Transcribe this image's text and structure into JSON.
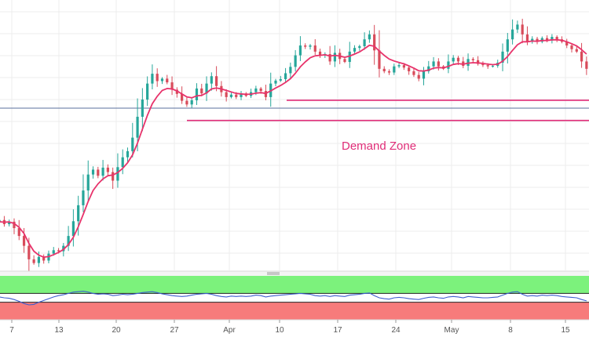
{
  "chart_data": {
    "type": "candlestick",
    "title": "",
    "annotation": "Demand Zone",
    "x_ticks": [
      "7",
      "13",
      "20",
      "27",
      "Apr",
      "10",
      "17",
      "24",
      "May",
      "8",
      "15"
    ],
    "grid": true,
    "colors": {
      "up": "#26a69a",
      "down": "#d84b5a",
      "ma": "#e8336b",
      "zone_line": "#e02d78",
      "horizontal_line": "#5a6f9e",
      "rsi_line": "#3d5ecf",
      "rsi_overbought_band": "#7cf27c",
      "rsi_oversold_band": "#f77b7b"
    },
    "price_series": {
      "name": "",
      "close": [
        1.2865,
        1.2848,
        1.2858,
        1.2832,
        1.28,
        1.276,
        1.2705,
        1.269,
        1.2715,
        1.27,
        1.2728,
        1.2742,
        1.2738,
        1.276,
        1.28,
        1.286,
        1.2925,
        1.2985,
        1.305,
        1.307,
        1.3045,
        1.3078,
        1.306,
        1.3025,
        1.308,
        1.312,
        1.3145,
        1.32,
        1.3285,
        1.3355,
        1.342,
        1.346,
        1.343,
        1.344,
        1.3425,
        1.3395,
        1.3378,
        1.335,
        1.3335,
        1.3352,
        1.34,
        1.338,
        1.342,
        1.345,
        1.341,
        1.3385,
        1.3365,
        1.3375,
        1.3365,
        1.338,
        1.337,
        1.3385,
        1.34,
        1.339,
        1.3365,
        1.342,
        1.3432,
        1.3438,
        1.3462,
        1.3488,
        1.3535,
        1.3575,
        1.357,
        1.3575,
        1.355,
        1.3535,
        1.354,
        1.351,
        1.3545,
        1.352,
        1.3508,
        1.355,
        1.3565,
        1.3572,
        1.36,
        1.362,
        1.3555,
        1.348,
        1.347,
        1.3465,
        1.349,
        1.3495,
        1.3485,
        1.347,
        1.3455,
        1.344,
        1.347,
        1.349,
        1.351,
        1.349,
        1.348,
        1.351,
        1.3525,
        1.351,
        1.3492,
        1.352,
        1.3515,
        1.35,
        1.3495,
        1.349,
        1.3492,
        1.3505,
        1.355,
        1.36,
        1.364,
        1.366,
        1.362,
        1.359,
        1.3602,
        1.359,
        1.3605,
        1.3595,
        1.361,
        1.36,
        1.359,
        1.3575,
        1.356,
        1.355,
        1.351,
        1.348
      ]
    },
    "moving_average": {
      "name": "",
      "values": [
        1.2858,
        1.2856,
        1.2857,
        1.2851,
        1.2835,
        1.281,
        1.277,
        1.2738,
        1.2722,
        1.2714,
        1.2716,
        1.2724,
        1.2733,
        1.2745,
        1.2765,
        1.2795,
        1.2838,
        1.2888,
        1.294,
        1.2985,
        1.3012,
        1.3032,
        1.3045,
        1.3048,
        1.3058,
        1.3075,
        1.3098,
        1.313,
        1.3178,
        1.3235,
        1.329,
        1.3338,
        1.3368,
        1.3392,
        1.34,
        1.3398,
        1.339,
        1.3378,
        1.3366,
        1.3362,
        1.337,
        1.3372,
        1.3382,
        1.3398,
        1.3402,
        1.3398,
        1.3392,
        1.3386,
        1.338,
        1.3378,
        1.3376,
        1.3377,
        1.3381,
        1.3383,
        1.338,
        1.339,
        1.3402,
        1.3412,
        1.3425,
        1.344,
        1.3462,
        1.3488,
        1.3508,
        1.3525,
        1.3533,
        1.3535,
        1.3537,
        1.3532,
        1.3535,
        1.3532,
        1.3527,
        1.3532,
        1.354,
        1.3549,
        1.3562,
        1.3576,
        1.3572,
        1.3552,
        1.3535,
        1.352,
        1.3512,
        1.3506,
        1.35,
        1.3492,
        1.3483,
        1.3472,
        1.3471,
        1.3475,
        1.3483,
        1.3485,
        1.3484,
        1.349,
        1.3498,
        1.3501,
        1.3499,
        1.3503,
        1.3505,
        1.3504,
        1.3502,
        1.3499,
        1.3497,
        1.3499,
        1.3511,
        1.353,
        1.3555,
        1.3578,
        1.359,
        1.359,
        1.3593,
        1.3592,
        1.3595,
        1.3595,
        1.3598,
        1.3598,
        1.3596,
        1.359,
        1.3582,
        1.3573,
        1.3558,
        1.354
      ]
    },
    "horizontal_lines": [
      1.332,
      1.327
    ],
    "demand_zone": {
      "upper": 1.3352,
      "lower": 1.327
    },
    "y_range": [
      1.266,
      1.376
    ],
    "rsi": {
      "name": "",
      "ylim": [
        0,
        100
      ],
      "overbought": 60,
      "oversold": 40,
      "values": [
        52,
        50,
        49,
        46,
        42,
        37,
        34,
        35,
        40,
        44,
        48,
        52,
        55,
        57,
        60,
        63,
        64,
        65,
        63,
        60,
        58,
        59,
        58,
        55,
        56,
        58,
        57,
        58,
        60,
        62,
        63,
        64,
        62,
        59,
        57,
        55,
        54,
        53,
        54,
        56,
        58,
        59,
        60,
        58,
        55,
        53,
        52,
        54,
        53,
        54,
        53,
        54,
        56,
        55,
        52,
        54,
        55,
        56,
        57,
        58,
        59,
        60,
        59,
        58,
        55,
        54,
        55,
        53,
        55,
        54,
        53,
        56,
        57,
        58,
        60,
        61,
        55,
        50,
        48,
        47,
        50,
        51,
        50,
        48,
        47,
        46,
        49,
        51,
        52,
        50,
        49,
        52,
        53,
        52,
        50,
        53,
        52,
        51,
        50,
        50,
        51,
        52,
        56,
        60,
        63,
        64,
        58,
        54,
        55,
        54,
        56,
        55,
        56,
        55,
        53,
        52,
        51,
        50,
        46,
        43
      ]
    }
  }
}
